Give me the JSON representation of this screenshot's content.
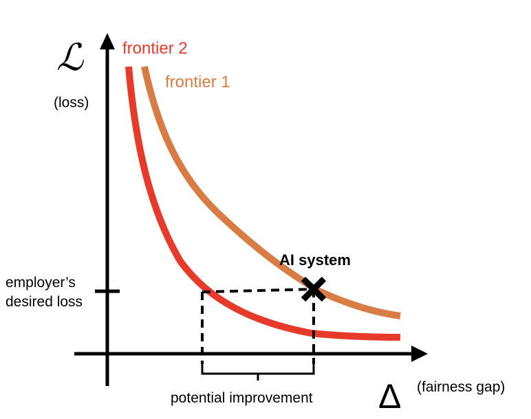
{
  "y_axis": {
    "symbol": "ℒ",
    "label": "(loss)"
  },
  "x_axis": {
    "symbol": "Δ",
    "label": "(fairness gap)"
  },
  "curves": {
    "frontier1": {
      "label": "frontier 1",
      "color": "#D97B45"
    },
    "frontier2": {
      "label": "frontier 2",
      "color": "#E83A2B"
    }
  },
  "desired_loss": {
    "label_line1": "employer’s",
    "label_line2": "desired loss"
  },
  "ai_system": {
    "label": "AI system",
    "marker": "cross-marker"
  },
  "improvement": {
    "label": "potential improvement"
  }
}
